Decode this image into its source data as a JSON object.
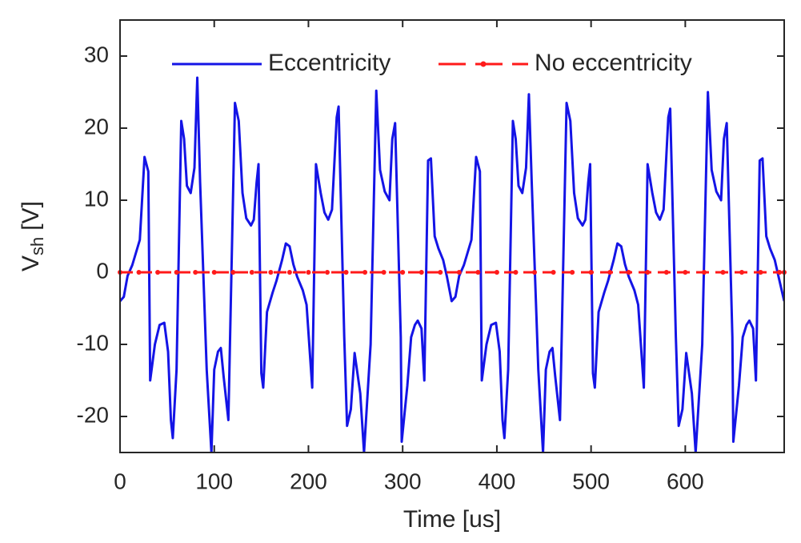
{
  "chart_data": {
    "type": "line",
    "xlabel": "Time [us]",
    "ylabel": {
      "main": "V",
      "sub": "sh",
      "unit": "[V]"
    },
    "xlim": [
      0,
      705
    ],
    "ylim": [
      -25,
      35
    ],
    "xticks": [
      0,
      100,
      200,
      300,
      400,
      500,
      600
    ],
    "yticks": [
      -20,
      -10,
      0,
      10,
      20,
      30
    ],
    "grid": false,
    "legend": "top",
    "series": [
      {
        "name": "Eccentricity",
        "color": "#1414e6",
        "style": "solid",
        "x": [
          0,
          4,
          8,
          13,
          21,
          26,
          30,
          32,
          37,
          42,
          47,
          51,
          54,
          56,
          60,
          65,
          68,
          71,
          75,
          79,
          82,
          85,
          92,
          97,
          100,
          104,
          107,
          110,
          115,
          122,
          126,
          130,
          134,
          139,
          142,
          145,
          147,
          150,
          152,
          156,
          162,
          166,
          172,
          176,
          180,
          184,
          188,
          194,
          198,
          204,
          208,
          213,
          217,
          221,
          225,
          230,
          232,
          238,
          241,
          245,
          249,
          255,
          259,
          266,
          272,
          276,
          281,
          286,
          289,
          292,
          298,
          299,
          305,
          309,
          313,
          316,
          320,
          323,
          327,
          330,
          334,
          338,
          343,
          347,
          352,
          356,
          360,
          365,
          373,
          378,
          382,
          384,
          389,
          394,
          399,
          403,
          406,
          408,
          412,
          417,
          420,
          423,
          427,
          431,
          434,
          437,
          444,
          449,
          452,
          456,
          459,
          462,
          467,
          474,
          478,
          482,
          486,
          491,
          494,
          497,
          499,
          502,
          504,
          508,
          514,
          518,
          524,
          528,
          532,
          536,
          540,
          546,
          550,
          556,
          560,
          565,
          569,
          573,
          577,
          582,
          584,
          590,
          593,
          597,
          601,
          607,
          611,
          618,
          624,
          628,
          633,
          638,
          641,
          644,
          650,
          651,
          657,
          661,
          665,
          668,
          672,
          675,
          679,
          682,
          686,
          690,
          695,
          699,
          705
        ],
        "values": [
          -4,
          -3.4,
          -0.5,
          1,
          4.5,
          16,
          14,
          -15,
          -10,
          -7.3,
          -7,
          -11,
          -20.5,
          -23,
          -13.5,
          21,
          18.5,
          12,
          11,
          14.5,
          27,
          12.5,
          -13.5,
          -25,
          -13.5,
          -11,
          -10.5,
          -14.5,
          -20.5,
          23.5,
          21,
          11,
          7.5,
          6.5,
          7.3,
          12.5,
          15,
          -14,
          -16,
          -5.5,
          -2.8,
          -1.2,
          1.7,
          4,
          3.6,
          1.1,
          -0.6,
          -2.5,
          -4.5,
          -16,
          15,
          11,
          8.3,
          7.3,
          8.7,
          21.5,
          23,
          -9,
          -21.3,
          -19,
          -11.2,
          -16.8,
          -25,
          -10,
          25.2,
          14.2,
          11.2,
          10,
          18.5,
          20.7,
          -9,
          -23.5,
          -15.7,
          -9,
          -7.3,
          -6.7,
          -7.8,
          -15,
          15.5,
          15.8,
          5,
          3.3,
          1.7,
          -0.6,
          -4,
          -3.4,
          -0.5,
          1,
          4.5,
          16,
          14,
          -15,
          -10,
          -7.3,
          -7,
          -11,
          -20.5,
          -23,
          -13.5,
          21,
          18.5,
          12,
          11,
          14.5,
          24.7,
          12.5,
          -13.5,
          -25,
          -13.5,
          -11,
          -10.5,
          -14.5,
          -20.5,
          23.5,
          21,
          11,
          7.5,
          6.5,
          7.3,
          12.5,
          15,
          -14,
          -16,
          -5.5,
          -2.8,
          -1.2,
          1.7,
          4,
          3.6,
          1.1,
          -0.6,
          -2.5,
          -4.5,
          -16,
          15,
          11,
          8.3,
          7.3,
          8.7,
          21.5,
          22.7,
          -9,
          -21.3,
          -19,
          -11.2,
          -16.8,
          -25,
          -10,
          25,
          14.2,
          11.2,
          10,
          18.5,
          20.7,
          -9,
          -23.5,
          -15.7,
          -9,
          -7.3,
          -6.7,
          -7.8,
          -15,
          15.5,
          15.8,
          5,
          3.3,
          1.7,
          -0.6,
          -4
        ]
      },
      {
        "name": "No eccentricity",
        "color": "#ff1a1a",
        "style": "dashed",
        "marker": "dot",
        "x": [
          0,
          20,
          40,
          60,
          80,
          100,
          120,
          140,
          160,
          180,
          200,
          220,
          240,
          260,
          280,
          300,
          320,
          340,
          360,
          380,
          400,
          420,
          440,
          460,
          480,
          500,
          520,
          540,
          560,
          580,
          600,
          620,
          640,
          660,
          680,
          700,
          705
        ],
        "values": [
          0,
          0,
          0,
          0,
          0,
          0,
          0,
          0,
          0,
          0,
          0,
          0,
          0,
          0,
          0,
          0,
          0,
          0,
          0,
          0,
          0,
          0,
          0,
          0,
          0,
          0,
          0,
          0,
          0,
          0,
          0,
          0,
          0,
          0,
          0,
          0,
          0
        ]
      }
    ]
  }
}
